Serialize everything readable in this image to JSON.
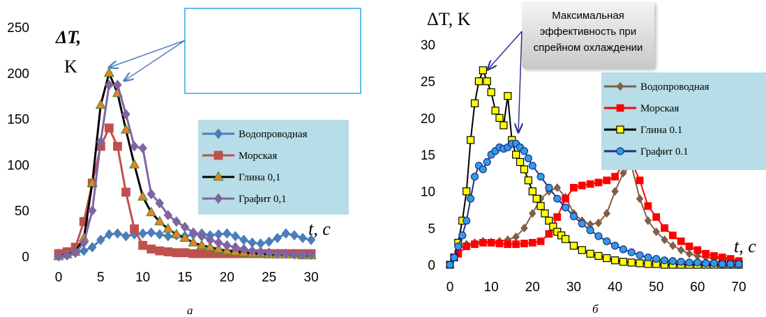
{
  "chart_data": [
    {
      "type": "line",
      "panel_label": "а",
      "ylabel_lines": [
        "ΔT,",
        "K"
      ],
      "xlabel": "t, c",
      "xlim": [
        0,
        30
      ],
      "ylim": [
        0,
        250
      ],
      "xticks": [
        0,
        5,
        10,
        15,
        20,
        25,
        30
      ],
      "yticks": [
        0,
        50,
        100,
        150,
        200,
        250
      ],
      "grid": false,
      "legend_position": "right",
      "annotation_box_text": "",
      "series": [
        {
          "name": "Водопроводная",
          "color": "#4a7ebb",
          "marker": "diamond",
          "x": [
            0,
            1,
            2,
            3,
            4,
            5,
            6,
            7,
            8,
            9,
            10,
            11,
            12,
            13,
            14,
            15,
            16,
            17,
            18,
            19,
            20,
            21,
            22,
            23,
            24,
            25,
            26,
            27,
            28,
            29,
            30
          ],
          "y": [
            3,
            3,
            4,
            6,
            10,
            18,
            24,
            25,
            22,
            24,
            25,
            26,
            24,
            22,
            23,
            22,
            24,
            25,
            23,
            24,
            25,
            22,
            18,
            15,
            14,
            16,
            20,
            25,
            23,
            20,
            18
          ]
        },
        {
          "name": "Морская",
          "color": "#c0504d",
          "marker": "square",
          "x": [
            0,
            1,
            2,
            3,
            4,
            5,
            6,
            7,
            8,
            9,
            10,
            11,
            12,
            13,
            14,
            15,
            16,
            17,
            18,
            19,
            20,
            21,
            22,
            23,
            24,
            25,
            26,
            27,
            28,
            29,
            30
          ],
          "y": [
            3,
            5,
            10,
            38,
            80,
            120,
            140,
            120,
            70,
            30,
            12,
            8,
            6,
            5,
            4,
            4,
            3,
            3,
            3,
            3,
            3,
            3,
            3,
            3,
            3,
            3,
            3,
            3,
            3,
            3,
            3
          ]
        },
        {
          "name": "Глина 0,1",
          "color": "#000000",
          "marker": "triangle",
          "x": [
            0,
            1,
            2,
            3,
            4,
            5,
            6,
            7,
            8,
            9,
            10,
            11,
            12,
            13,
            14,
            15,
            16,
            17,
            18,
            19,
            20,
            21,
            22,
            23,
            24,
            25,
            26,
            27,
            28,
            29,
            30
          ],
          "y": [
            0,
            2,
            5,
            20,
            80,
            165,
            200,
            178,
            138,
            100,
            65,
            48,
            38,
            30,
            24,
            20,
            15,
            12,
            10,
            8,
            6,
            5,
            4,
            3,
            3,
            2,
            2,
            2,
            2,
            1,
            1
          ]
        },
        {
          "name": "Графит 0,1",
          "color": "#8064a2",
          "marker": "diamond",
          "x": [
            0,
            1,
            2,
            3,
            4,
            5,
            6,
            7,
            8,
            9,
            10,
            11,
            12,
            13,
            14,
            15,
            16,
            17,
            18,
            19,
            20,
            21,
            22,
            23,
            24,
            25,
            26,
            27,
            28,
            29,
            30
          ],
          "y": [
            0,
            1,
            4,
            15,
            50,
            125,
            187,
            187,
            155,
            120,
            118,
            68,
            58,
            45,
            38,
            32,
            26,
            22,
            18,
            15,
            12,
            10,
            8,
            6,
            5,
            4,
            3,
            3,
            2,
            2,
            2
          ]
        }
      ]
    },
    {
      "type": "line",
      "panel_label": "б",
      "ylabel": "ΔT, K",
      "xlabel": "t, c",
      "xlim": [
        0,
        70
      ],
      "ylim": [
        0,
        30
      ],
      "xticks": [
        0,
        10,
        20,
        30,
        40,
        50,
        60,
        70
      ],
      "yticks": [
        0,
        5,
        10,
        15,
        20,
        25,
        30
      ],
      "grid": false,
      "legend_position": "top-right",
      "annotation_text": [
        "Максимальная",
        "эффективность при",
        "спрейном охлаждении"
      ],
      "series": [
        {
          "name": "Водопроводная",
          "color": "#7f5f46",
          "marker": "diamond",
          "x": [
            0,
            2,
            4,
            6,
            8,
            10,
            12,
            14,
            16,
            18,
            20,
            22,
            24,
            26,
            28,
            30,
            32,
            34,
            36,
            38,
            40,
            42,
            44,
            46,
            48,
            50,
            52,
            54,
            56,
            58,
            60,
            62,
            64,
            66,
            68,
            70
          ],
          "y": [
            0,
            2,
            2.8,
            3,
            3.2,
            3.1,
            3.2,
            3.4,
            3.8,
            5,
            7,
            9,
            10,
            10.5,
            9.2,
            7,
            6,
            5.5,
            5.7,
            7,
            10,
            12.5,
            13.5,
            9,
            6,
            4.5,
            3.4,
            2.6,
            2,
            1.5,
            1.2,
            1,
            0.9,
            0.8,
            0.7,
            0.5
          ]
        },
        {
          "name": "Морская",
          "color": "#ff0000",
          "marker": "square",
          "x": [
            0,
            2,
            4,
            6,
            8,
            10,
            12,
            14,
            16,
            18,
            20,
            22,
            24,
            26,
            28,
            30,
            32,
            34,
            36,
            38,
            40,
            42,
            44,
            46,
            48,
            50,
            52,
            54,
            56,
            58,
            60,
            62,
            64,
            66,
            68,
            70
          ],
          "y": [
            0,
            1.5,
            2.5,
            2.8,
            3,
            3,
            2.9,
            2.8,
            2.8,
            2.9,
            3,
            3.2,
            4.2,
            6.5,
            9,
            10.5,
            10.8,
            11,
            11.2,
            11.5,
            12,
            13.7,
            14,
            11.5,
            8,
            6.5,
            5,
            4,
            3.2,
            2.5,
            2,
            1.5,
            1.2,
            1,
            0.8,
            0.5
          ]
        },
        {
          "name": "Глина 0.1",
          "color": "#000000",
          "marker": "square-yellow",
          "x": [
            0,
            1,
            2,
            3,
            4,
            5,
            6,
            7,
            8,
            9,
            10,
            11,
            12,
            13,
            14,
            15,
            16,
            17,
            18,
            19,
            20,
            21,
            22,
            23,
            24,
            25,
            26,
            27,
            28,
            30,
            32,
            34,
            36,
            38,
            40,
            42,
            44,
            46,
            48,
            50,
            52,
            54,
            56,
            58,
            60,
            62,
            64,
            66,
            68,
            70
          ],
          "y": [
            0,
            1,
            3,
            6,
            10,
            17,
            22,
            25,
            26.5,
            25,
            23.5,
            21,
            20,
            19,
            23,
            17,
            15,
            14,
            13,
            11.5,
            10,
            9,
            8,
            7,
            6,
            5.2,
            4.5,
            4,
            3.5,
            2.6,
            2,
            1.5,
            1.2,
            0.9,
            0.6,
            0.4,
            0.3,
            0.2,
            0.1,
            0.1,
            0,
            0,
            0,
            0,
            0,
            0,
            0,
            0,
            0,
            0
          ]
        },
        {
          "name": "Графит 0.1",
          "color": "#1f2d86",
          "marker": "circle",
          "x": [
            0,
            1,
            2,
            3,
            4,
            5,
            6,
            7,
            8,
            9,
            10,
            11,
            12,
            13,
            14,
            15,
            16,
            17,
            18,
            19,
            20,
            22,
            24,
            26,
            28,
            30,
            32,
            34,
            36,
            38,
            40,
            42,
            44,
            46,
            48,
            50,
            52,
            54,
            56,
            58,
            60,
            62,
            64,
            66,
            68,
            70
          ],
          "y": [
            0,
            1,
            2.5,
            4,
            6,
            9,
            12,
            13.5,
            13,
            14,
            15,
            15.5,
            16,
            15.8,
            16,
            16.5,
            16.5,
            16,
            15.5,
            14.5,
            13.5,
            12,
            10.5,
            9,
            7.8,
            6.6,
            5.6,
            4.7,
            3.9,
            3.2,
            2.6,
            2.1,
            1.7,
            1.3,
            1,
            0.8,
            0.6,
            0.5,
            0.4,
            0.3,
            0.3,
            0.2,
            0.2,
            0.1,
            0.1,
            0.1
          ]
        }
      ]
    }
  ]
}
